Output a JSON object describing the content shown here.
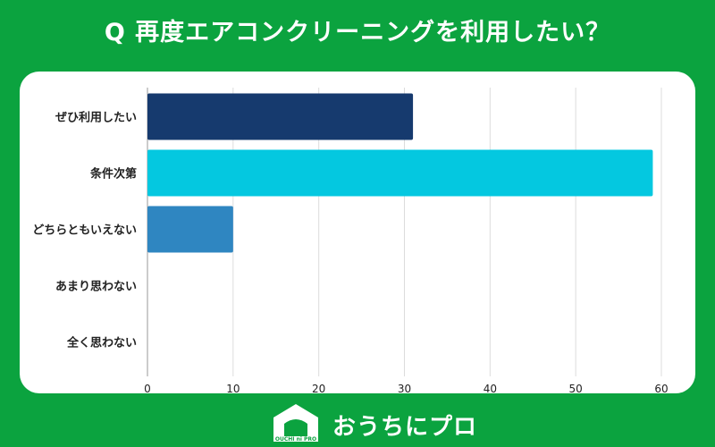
{
  "title": "Q 再度エアコンクリーニングを利用したい？",
  "chart_data": {
    "type": "bar",
    "orientation": "horizontal",
    "categories": [
      "ぜひ利用したい",
      "条件次第",
      "どちらともいえない",
      "あまり思わない",
      "全く思わない"
    ],
    "values": [
      31,
      59,
      10,
      0,
      0
    ],
    "bar_colors": [
      "#163a6e",
      "#04c8e0",
      "#2f86c1",
      "#2f86c1",
      "#2f86c1"
    ],
    "xlim": [
      0,
      60
    ],
    "xticks": [
      "0",
      "10",
      "20",
      "30",
      "40",
      "50",
      "60"
    ],
    "grid": true,
    "xlabel": "",
    "ylabel": ""
  },
  "footer": {
    "logo_text": "OUCHI ni PRO",
    "brand_name": "おうちにプロ"
  }
}
